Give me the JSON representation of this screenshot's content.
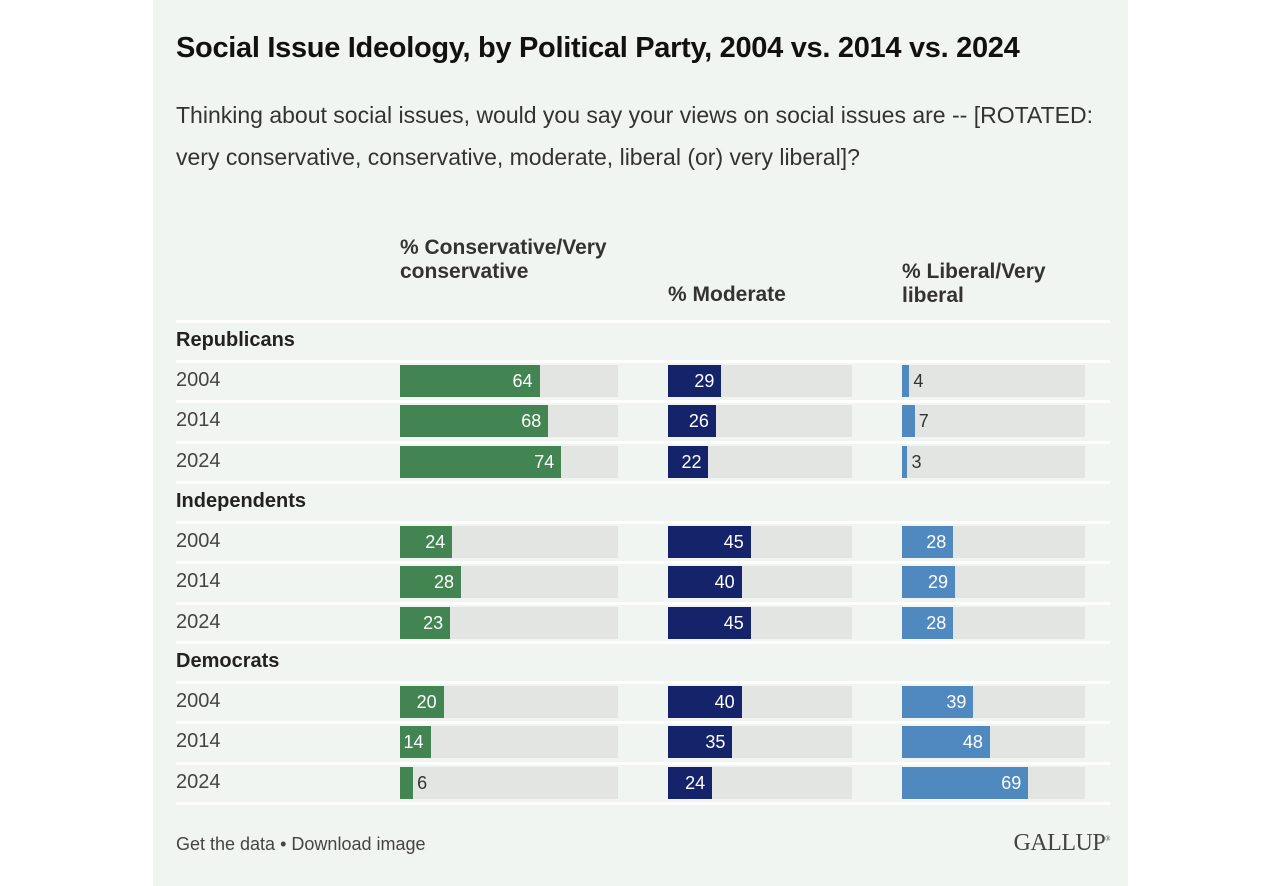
{
  "title": "Social Issue Ideology, by Political Party, 2004 vs. 2014 vs. 2024",
  "subtitle": "Thinking about social issues, would you say your views on social issues are -- [ROTATED: very conservative, conservative, moderate, liberal (or) very liberal]?",
  "footer": {
    "get_data": "Get the data",
    "bullet": "•",
    "download": "Download image",
    "logo": "GALLUP"
  },
  "colors": {
    "conservative": "#438552",
    "moderate": "#15236b",
    "liberal": "#5089c0",
    "track": "#e2e5e2",
    "background": "#f1f5f1"
  },
  "chart_data": {
    "type": "bar",
    "orientation": "horizontal",
    "title": "Social Issue Ideology, by Political Party, 2004 vs. 2014 vs. 2024",
    "columns": [
      "% Conservative/Very conservative",
      "% Moderate",
      "% Liberal/Very liberal"
    ],
    "xlim": [
      0,
      100
    ],
    "groups": [
      {
        "name": "Republicans",
        "rows": [
          {
            "year": "2004",
            "values": [
              64,
              29,
              4
            ]
          },
          {
            "year": "2014",
            "values": [
              68,
              26,
              7
            ]
          },
          {
            "year": "2024",
            "values": [
              74,
              22,
              3
            ]
          }
        ]
      },
      {
        "name": "Independents",
        "rows": [
          {
            "year": "2004",
            "values": [
              24,
              45,
              28
            ]
          },
          {
            "year": "2014",
            "values": [
              28,
              40,
              29
            ]
          },
          {
            "year": "2024",
            "values": [
              23,
              45,
              28
            ]
          }
        ]
      },
      {
        "name": "Democrats",
        "rows": [
          {
            "year": "2004",
            "values": [
              20,
              40,
              39
            ]
          },
          {
            "year": "2014",
            "values": [
              14,
              35,
              48
            ]
          },
          {
            "year": "2024",
            "values": [
              6,
              24,
              69
            ]
          }
        ]
      }
    ]
  }
}
